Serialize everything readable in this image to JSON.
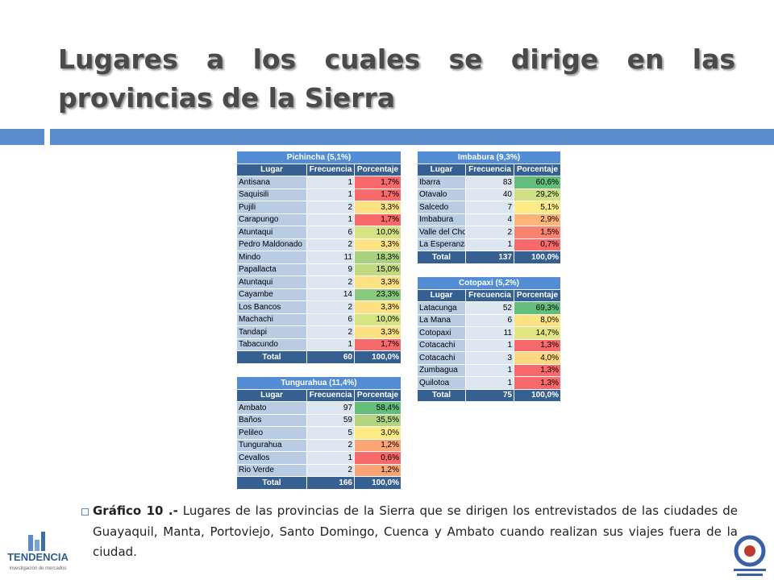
{
  "title": "Lugares a los cuales se dirige en las provincias de la Sierra",
  "tables": [
    {
      "title": "Pichincha (5,1%)",
      "header": [
        "Lugar",
        "Frecuencia",
        "Porcentaje"
      ],
      "rows": [
        [
          "Antisana",
          "1",
          "1,7%"
        ],
        [
          "Saquisili",
          "1",
          "1,7%"
        ],
        [
          "Pujili",
          "2",
          "3,3%"
        ],
        [
          "Carapungo",
          "1",
          "1,7%"
        ],
        [
          "Atuntaqui",
          "6",
          "10,0%"
        ],
        [
          "Pedro Maldonado",
          "2",
          "3,3%"
        ],
        [
          "Mindo",
          "11",
          "18,3%"
        ],
        [
          "Papallacta",
          "9",
          "15,0%"
        ],
        [
          "Atuntaqui",
          "2",
          "3,3%"
        ],
        [
          "Cayambe",
          "14",
          "23,3%"
        ],
        [
          "Los Bancos",
          "2",
          "3,3%"
        ],
        [
          "Machachi",
          "6",
          "10,0%"
        ],
        [
          "Tandapi",
          "2",
          "3,3%"
        ],
        [
          "Tabacundo",
          "1",
          "1,7%"
        ]
      ],
      "colors": [
        "#f8696b",
        "#f8696b",
        "#fde283",
        "#f8696b",
        "#d5e382",
        "#fde283",
        "#a9d27f",
        "#c1da81",
        "#fde283",
        "#8ac97d",
        "#fde283",
        "#d5e382",
        "#fde283",
        "#f8696b"
      ],
      "total": [
        "Total",
        "60",
        "100,0%"
      ]
    },
    {
      "title": "Imbabura (9,3%)",
      "header": [
        "Lugar",
        "Frecuencia",
        "Porcentaje"
      ],
      "rows": [
        [
          "Ibarra",
          "83",
          "60,6%"
        ],
        [
          "Otavalo",
          "40",
          "29,2%"
        ],
        [
          "Salcedo",
          "7",
          "5,1%"
        ],
        [
          "Imbabura",
          "4",
          "2,9%"
        ],
        [
          "Valle del Chota",
          "2",
          "1,5%"
        ],
        [
          "La Esperanza",
          "1",
          "0,7%"
        ]
      ],
      "colors": [
        "#63be7b",
        "#cfe183",
        "#ffeb84",
        "#fcb479",
        "#f98370",
        "#f8696b"
      ],
      "total": [
        "Total",
        "137",
        "100,0%"
      ]
    },
    {
      "title": "Cotopaxi (5,2%)",
      "header": [
        "Lugar",
        "Frecuencia",
        "Porcentaje"
      ],
      "rows": [
        [
          "Latacunga",
          "52",
          "69,3%"
        ],
        [
          "La Mana",
          "6",
          "8,0%"
        ],
        [
          "Cotopaxi",
          "11",
          "14,7%"
        ],
        [
          "Cotacachi",
          "1",
          "1,3%"
        ],
        [
          "Cotacachi",
          "3",
          "4,0%"
        ],
        [
          "Zumbagua",
          "1",
          "1,3%"
        ],
        [
          "Quilotoa",
          "1",
          "1,3%"
        ]
      ],
      "colors": [
        "#63be7b",
        "#fde283",
        "#e3e683",
        "#f8696b",
        "#fed880",
        "#f8696b",
        "#f8696b"
      ],
      "total": [
        "Total",
        "75",
        "100,0%"
      ]
    },
    {
      "title": "Tungurahua (11,4%)",
      "header": [
        "Lugar",
        "Frecuencia",
        "Porcentaje"
      ],
      "rows": [
        [
          "Ambato",
          "97",
          "58,4%"
        ],
        [
          "Baños",
          "59",
          "35,5%"
        ],
        [
          "Pelileo",
          "5",
          "3,0%"
        ],
        [
          "Tungurahua",
          "2",
          "1,2%"
        ],
        [
          "Cevallos",
          "1",
          "0,6%"
        ],
        [
          "Rio Verde",
          "2",
          "1,2%"
        ]
      ],
      "colors": [
        "#63be7b",
        "#b4d580",
        "#ffeb84",
        "#fba476",
        "#f8696b",
        "#fba476"
      ],
      "total": [
        "Total",
        "166",
        "100,0%"
      ]
    }
  ],
  "caption": {
    "label": "Gráfico 10 .-",
    "text": "Lugares de las provincias de la Sierra que se dirigen los entrevistados de las ciudades de Guayaquil, Manta, Portoviejo, Santo Domingo, Cuenca y Ambato cuando realizan sus viajes fuera de la ciudad."
  },
  "logo": {
    "name": "TENDENCIA",
    "tagline": "investigación de mercados"
  }
}
